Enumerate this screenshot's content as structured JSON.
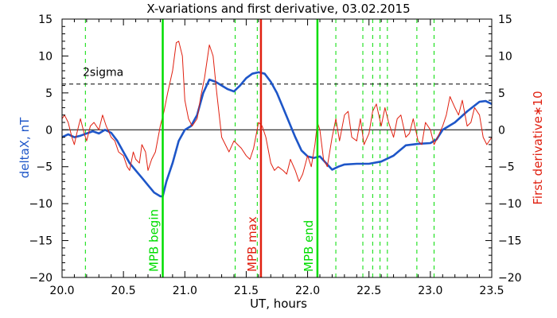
{
  "chart_data": {
    "type": "line",
    "title": "X-variations and first derivative, 03.02.2015",
    "xlabel": "UT, hours",
    "ylabel_left": "deltaX, nT",
    "ylabel_right": "First derivative∗10",
    "xlim": [
      20.0,
      23.5
    ],
    "ylim": [
      -20,
      15
    ],
    "x_ticks": [
      "20.0",
      "20.5",
      "21.0",
      "21.5",
      "22.0",
      "22.5",
      "23.0",
      "23.5"
    ],
    "y_ticks": [
      "15",
      "10",
      "5",
      "0",
      "−5",
      "−10",
      "−15",
      "−20"
    ],
    "threshold": {
      "label": "2sigma",
      "value": 6.2
    },
    "zero_line": 0,
    "dashed_verticals": [
      20.19,
      20.82,
      21.41,
      21.59,
      22.08,
      22.23,
      22.45,
      22.53,
      22.59,
      22.65,
      22.89,
      23.03
    ],
    "markers": [
      {
        "label": "MPB begin",
        "x": 20.82,
        "color": "#00dd00"
      },
      {
        "label": "MPB max",
        "x": 21.62,
        "color": "#e02010"
      },
      {
        "label": "MPB end",
        "x": 22.08,
        "color": "#00dd00"
      }
    ],
    "series": [
      {
        "name": "deltaX, nT",
        "color": "#1e56c8",
        "x": [
          20.0,
          20.05,
          20.1,
          20.15,
          20.2,
          20.25,
          20.3,
          20.35,
          20.4,
          20.45,
          20.5,
          20.55,
          20.6,
          20.65,
          20.7,
          20.75,
          20.8,
          20.82,
          20.85,
          20.9,
          20.95,
          21.0,
          21.05,
          21.1,
          21.15,
          21.2,
          21.25,
          21.3,
          21.35,
          21.4,
          21.45,
          21.5,
          21.55,
          21.6,
          21.65,
          21.7,
          21.75,
          21.8,
          21.85,
          21.9,
          21.95,
          22.0,
          22.05,
          22.1,
          22.15,
          22.2,
          22.25,
          22.3,
          22.4,
          22.5,
          22.6,
          22.7,
          22.75,
          22.8,
          22.9,
          23.0,
          23.05,
          23.1,
          23.2,
          23.3,
          23.4,
          23.45,
          23.5
        ],
        "y": [
          -1.0,
          -0.6,
          -1.0,
          -0.8,
          -0.5,
          -0.2,
          -0.5,
          0.0,
          -0.4,
          -1.5,
          -3.0,
          -4.5,
          -5.5,
          -6.5,
          -7.5,
          -8.5,
          -9.0,
          -9.0,
          -7.0,
          -4.5,
          -1.5,
          0.0,
          0.5,
          2.0,
          5.0,
          6.8,
          6.5,
          6.0,
          5.5,
          5.2,
          6.0,
          7.0,
          7.6,
          7.8,
          7.6,
          6.5,
          5.0,
          3.0,
          1.0,
          -1.0,
          -2.8,
          -3.6,
          -3.8,
          -3.6,
          -4.5,
          -5.4,
          -5.0,
          -4.7,
          -4.6,
          -4.6,
          -4.3,
          -3.5,
          -2.8,
          -2.1,
          -1.9,
          -1.8,
          -1.3,
          0.0,
          1.0,
          2.5,
          3.8,
          3.9,
          3.5
        ]
      },
      {
        "name": "First derivative∗10",
        "color": "#e02010",
        "x": [
          20.0,
          20.02,
          20.05,
          20.08,
          20.1,
          20.12,
          20.15,
          20.18,
          20.2,
          20.23,
          20.26,
          20.3,
          20.33,
          20.36,
          20.4,
          20.43,
          20.46,
          20.5,
          20.53,
          20.55,
          20.58,
          20.6,
          20.63,
          20.65,
          20.68,
          20.7,
          20.73,
          20.76,
          20.8,
          20.83,
          20.86,
          20.9,
          20.93,
          20.95,
          20.98,
          21.0,
          21.03,
          21.06,
          21.1,
          21.13,
          21.16,
          21.2,
          21.23,
          21.26,
          21.3,
          21.33,
          21.36,
          21.4,
          21.43,
          21.46,
          21.5,
          21.53,
          21.56,
          21.6,
          21.63,
          21.66,
          21.7,
          21.73,
          21.76,
          21.8,
          21.83,
          21.86,
          21.9,
          21.93,
          21.96,
          22.0,
          22.03,
          22.06,
          22.08,
          22.1,
          22.13,
          22.16,
          22.2,
          22.23,
          22.26,
          22.3,
          22.33,
          22.36,
          22.4,
          22.43,
          22.46,
          22.5,
          22.53,
          22.56,
          22.6,
          22.63,
          22.66,
          22.7,
          22.73,
          22.76,
          22.8,
          22.83,
          22.86,
          22.9,
          22.93,
          22.96,
          23.0,
          23.03,
          23.06,
          23.1,
          23.13,
          23.16,
          23.2,
          23.23,
          23.26,
          23.3,
          23.33,
          23.36,
          23.4,
          23.43,
          23.46,
          23.5
        ],
        "y": [
          1.5,
          2.0,
          1.0,
          -1.0,
          -2.0,
          -0.5,
          1.5,
          -0.5,
          -1.5,
          0.5,
          1.0,
          0.0,
          2.0,
          0.5,
          -1.0,
          -1.5,
          -3.0,
          -3.5,
          -5.0,
          -5.5,
          -3.0,
          -4.0,
          -4.5,
          -2.0,
          -3.0,
          -5.5,
          -4.0,
          -3.0,
          0.5,
          2.5,
          5.0,
          8.0,
          11.8,
          12.0,
          10.0,
          4.0,
          1.5,
          0.5,
          1.5,
          4.5,
          7.0,
          11.5,
          10.0,
          5.0,
          -1.0,
          -2.0,
          -3.0,
          -1.5,
          -2.0,
          -2.5,
          -3.5,
          -4.0,
          -2.5,
          1.0,
          0.5,
          -1.0,
          -4.5,
          -5.5,
          -5.0,
          -5.5,
          -6.0,
          -4.0,
          -5.5,
          -7.0,
          -6.0,
          -3.5,
          -5.0,
          -2.0,
          1.0,
          0.0,
          -4.0,
          -5.0,
          -1.0,
          1.5,
          -1.5,
          2.0,
          2.5,
          -1.0,
          -1.5,
          1.5,
          -2.0,
          -0.5,
          2.5,
          3.5,
          0.5,
          3.0,
          1.0,
          -1.0,
          1.5,
          2.0,
          -1.0,
          -0.5,
          1.5,
          -1.5,
          -2.0,
          1.0,
          0.0,
          -2.0,
          -1.0,
          0.5,
          2.0,
          4.5,
          3.0,
          2.0,
          4.0,
          0.5,
          1.0,
          3.0,
          2.0,
          -1.0,
          -2.0,
          -1.0
        ]
      }
    ]
  }
}
